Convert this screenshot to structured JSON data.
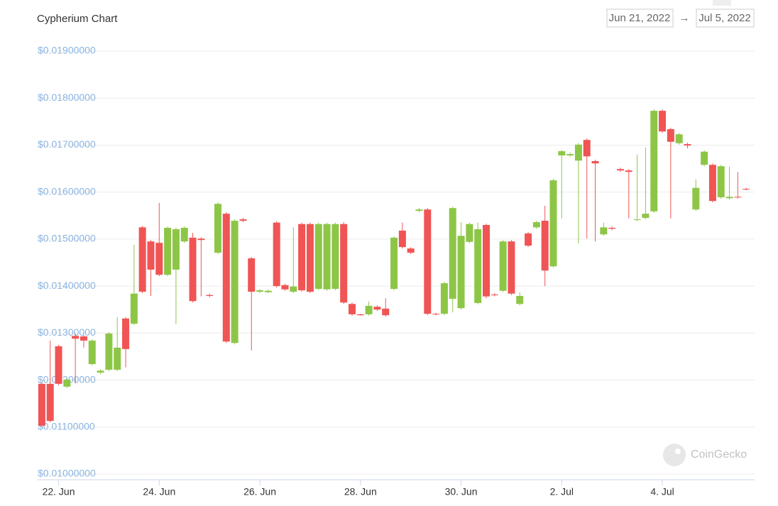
{
  "chart_data": {
    "type": "candlestick",
    "title": "Cypherium Chart",
    "up_color": "#8dc647",
    "down_color": "#f05454",
    "grid": true,
    "xlim": [
      -10,
      332
    ],
    "xticks": [
      {
        "value": 0,
        "label": "22. Jun"
      },
      {
        "value": 48,
        "label": "24. Jun"
      },
      {
        "value": 96,
        "label": "26. Jun"
      },
      {
        "value": 144,
        "label": "28. Jun"
      },
      {
        "value": 192,
        "label": "30. Jun"
      },
      {
        "value": 240,
        "label": "2. Jul"
      },
      {
        "value": 288,
        "label": "4. Jul"
      }
    ],
    "ylim": [
      0.01,
      0.019
    ],
    "yticks": [
      {
        "value": 0.01,
        "label": "$0.01000000"
      },
      {
        "value": 0.011,
        "label": "$0.01100000"
      },
      {
        "value": 0.012,
        "label": "$0.01200000"
      },
      {
        "value": 0.013,
        "label": "$0.01300000"
      },
      {
        "value": 0.014,
        "label": "$0.01400000"
      },
      {
        "value": 0.015,
        "label": "$0.01500000"
      },
      {
        "value": 0.016,
        "label": "$0.01600000"
      },
      {
        "value": 0.017,
        "label": "$0.01700000"
      },
      {
        "value": 0.018,
        "label": "$0.01800000"
      },
      {
        "value": 0.019,
        "label": "$0.01900000"
      }
    ],
    "x": [
      -8,
      -4,
      0,
      4,
      8,
      12,
      16,
      20,
      24,
      28,
      32,
      36,
      40,
      44,
      48,
      52,
      56,
      60,
      64,
      68,
      72,
      76,
      80,
      84,
      88,
      92,
      96,
      100,
      104,
      108,
      112,
      116,
      120,
      124,
      128,
      132,
      136,
      140,
      144,
      148,
      152,
      156,
      160,
      164,
      168,
      172,
      176,
      180,
      184,
      188,
      192,
      196,
      200,
      204,
      208,
      212,
      216,
      220,
      224,
      228,
      232,
      236,
      240,
      244,
      248,
      252,
      256,
      260,
      264,
      268,
      272,
      276,
      280,
      284,
      288,
      292,
      296,
      300,
      304,
      308,
      312,
      316,
      320,
      324,
      328
    ],
    "open": [
      0.01192,
      0.01192,
      0.01272,
      0.01186,
      0.01294,
      0.01293,
      0.01234,
      0.01216,
      0.01222,
      0.01222,
      0.01331,
      0.0132,
      0.01525,
      0.01495,
      0.01492,
      0.01424,
      0.01435,
      0.01495,
      0.01503,
      0.01501,
      0.01381,
      0.01471,
      0.01554,
      0.01279,
      0.01542,
      0.01459,
      0.01388,
      0.01387,
      0.01535,
      0.01402,
      0.01388,
      0.01532,
      0.01532,
      0.01394,
      0.01393,
      0.01394,
      0.01532,
      0.01362,
      0.0134,
      0.0134,
      0.01356,
      0.01352,
      0.01394,
      0.01518,
      0.0148,
      0.0156,
      0.01563,
      0.01341,
      0.01341,
      0.01373,
      0.01353,
      0.01494,
      0.01364,
      0.0153,
      0.01382,
      0.0139,
      0.01495,
      0.01362,
      0.01512,
      0.01525,
      0.01539,
      0.01442,
      0.01678,
      0.01678,
      0.01667,
      0.01711,
      0.01666,
      0.0151,
      0.01524,
      0.01649,
      0.01646,
      0.01541,
      0.01545,
      0.01559,
      0.01773,
      0.01734,
      0.01704,
      0.01702,
      0.01563,
      0.01658,
      0.01658,
      0.01589,
      0.01587,
      0.0159,
      0.01607
    ],
    "high": [
      0.01195,
      0.01284,
      0.01275,
      0.01205,
      0.01299,
      0.01296,
      0.01287,
      0.01223,
      0.01302,
      0.01334,
      0.01334,
      0.01488,
      0.01528,
      0.01498,
      0.01577,
      0.01527,
      0.01524,
      0.01527,
      0.01513,
      0.01504,
      0.01384,
      0.01578,
      0.01557,
      0.01542,
      0.01545,
      0.01462,
      0.01394,
      0.01393,
      0.01538,
      0.01405,
      0.01525,
      0.01535,
      0.01535,
      0.01535,
      0.01535,
      0.01535,
      0.01536,
      0.01365,
      0.01341,
      0.01367,
      0.01359,
      0.01374,
      0.01506,
      0.01535,
      0.01483,
      0.01566,
      0.01566,
      0.01343,
      0.01409,
      0.01569,
      0.01536,
      0.01535,
      0.01535,
      0.01533,
      0.01385,
      0.01498,
      0.01498,
      0.01387,
      0.01515,
      0.01539,
      0.01571,
      0.01628,
      0.0169,
      0.01684,
      0.01704,
      0.01714,
      0.01669,
      0.01535,
      0.01527,
      0.01652,
      0.01649,
      0.0168,
      0.01695,
      0.01776,
      0.01776,
      0.01737,
      0.01726,
      0.01705,
      0.01627,
      0.01689,
      0.01661,
      0.01658,
      0.01654,
      0.01643,
      0.01609
    ],
    "low": [
      0.011,
      0.0111,
      0.01189,
      0.01183,
      0.01193,
      0.01269,
      0.01231,
      0.01213,
      0.01219,
      0.01219,
      0.01227,
      0.01317,
      0.01385,
      0.01379,
      0.01421,
      0.01421,
      0.01319,
      0.01492,
      0.01365,
      0.01378,
      0.01376,
      0.01468,
      0.01279,
      0.01276,
      0.01536,
      0.01263,
      0.01385,
      0.01385,
      0.01397,
      0.0139,
      0.01385,
      0.01388,
      0.01385,
      0.01391,
      0.0139,
      0.01391,
      0.01362,
      0.01337,
      0.01337,
      0.01337,
      0.01347,
      0.01335,
      0.01391,
      0.0148,
      0.01468,
      0.01557,
      0.01338,
      0.01338,
      0.01338,
      0.01344,
      0.0135,
      0.01491,
      0.01361,
      0.01374,
      0.01378,
      0.01387,
      0.01381,
      0.01359,
      0.01483,
      0.01522,
      0.014,
      0.01439,
      0.01544,
      0.01675,
      0.01491,
      0.01501,
      0.01495,
      0.01507,
      0.01519,
      0.01643,
      0.01544,
      0.01538,
      0.01542,
      0.01556,
      0.01726,
      0.01544,
      0.01701,
      0.01693,
      0.0156,
      0.01655,
      0.01578,
      0.01586,
      0.01584,
      0.01586,
      0.01604
    ],
    "close": [
      0.01103,
      0.01113,
      0.01192,
      0.01201,
      0.01288,
      0.01284,
      0.01284,
      0.0122,
      0.01299,
      0.01269,
      0.01266,
      0.01384,
      0.01388,
      0.01435,
      0.01424,
      0.01524,
      0.01521,
      0.01524,
      0.01368,
      0.01498,
      0.01379,
      0.01575,
      0.01282,
      0.01539,
      0.01539,
      0.01388,
      0.01391,
      0.0139,
      0.014,
      0.01393,
      0.01399,
      0.01391,
      0.01388,
      0.01532,
      0.01532,
      0.01532,
      0.01365,
      0.0134,
      0.01338,
      0.01358,
      0.0135,
      0.01338,
      0.01503,
      0.01483,
      0.01471,
      0.01563,
      0.01341,
      0.0134,
      0.01406,
      0.01566,
      0.01507,
      0.01532,
      0.01521,
      0.01378,
      0.01381,
      0.01495,
      0.01384,
      0.01379,
      0.01486,
      0.01536,
      0.01433,
      0.01625,
      0.01687,
      0.01681,
      0.01701,
      0.01676,
      0.01661,
      0.01525,
      0.01522,
      0.01646,
      0.01643,
      0.01542,
      0.01554,
      0.01773,
      0.01729,
      0.01707,
      0.01723,
      0.01699,
      0.01609,
      0.01686,
      0.01581,
      0.01655,
      0.0159,
      0.01589,
      0.01606
    ]
  },
  "date_range": {
    "from": "Jun 21, 2022",
    "separator": "→",
    "to": "Jul 5, 2022"
  },
  "watermark": "CoinGecko"
}
